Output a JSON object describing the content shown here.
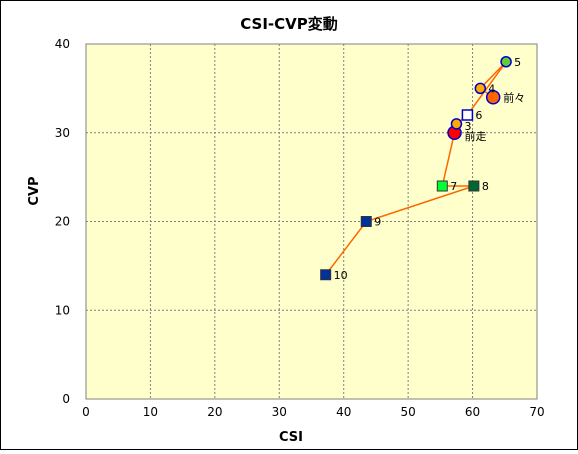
{
  "chart_data": {
    "type": "scatter",
    "title": "CSI-CVP変動",
    "xlabel": "CSI",
    "ylabel": "CVP",
    "xlim": [
      0,
      70
    ],
    "ylim": [
      0,
      40
    ],
    "xticks": [
      0,
      10,
      20,
      30,
      40,
      50,
      60,
      70
    ],
    "yticks": [
      0,
      10,
      20,
      30,
      40
    ],
    "grid": true,
    "legend": "none",
    "colors": {
      "plot_bg": "#ffffcc",
      "line": "#ff6600",
      "grid": "#808080",
      "square_dark": "#003399",
      "square_light": "#00ff33",
      "square_green": "#006633",
      "square_white": "#ffffff",
      "circle_orange": "#ffaa00",
      "circle_green": "#66cc33",
      "circle_red": "#ff0000",
      "circle_orange_big": "#ff6600",
      "outline_blue": "#0000cc"
    },
    "path_order": [
      "10",
      "9",
      "8",
      "7",
      "前走",
      "3",
      "6",
      "5",
      "4",
      "前々"
    ],
    "points": [
      {
        "label": "10",
        "x": 37.2,
        "y": 14,
        "marker": "square",
        "fill": "#003399"
      },
      {
        "label": "9",
        "x": 43.5,
        "y": 20,
        "marker": "square",
        "fill": "#003399"
      },
      {
        "label": "8",
        "x": 60.2,
        "y": 24,
        "marker": "square",
        "fill": "#006633"
      },
      {
        "label": "7",
        "x": 55.3,
        "y": 24,
        "marker": "square",
        "fill": "#00ff33"
      },
      {
        "label": "前走",
        "x": 57.2,
        "y": 30,
        "marker": "circle-large",
        "fill": "#ff0000"
      },
      {
        "label": "3",
        "x": 57.5,
        "y": 31,
        "marker": "circle",
        "fill": "#ffaa00"
      },
      {
        "label": "6",
        "x": 59.2,
        "y": 32,
        "marker": "square",
        "fill": "#ffffff"
      },
      {
        "label": "5",
        "x": 65.2,
        "y": 38,
        "marker": "circle",
        "fill": "#66cc33"
      },
      {
        "label": "4",
        "x": 61.2,
        "y": 35,
        "marker": "circle",
        "fill": "#ffaa00"
      },
      {
        "label": "前々",
        "x": 63.2,
        "y": 34,
        "marker": "circle-large",
        "fill": "#ff6600"
      }
    ]
  }
}
